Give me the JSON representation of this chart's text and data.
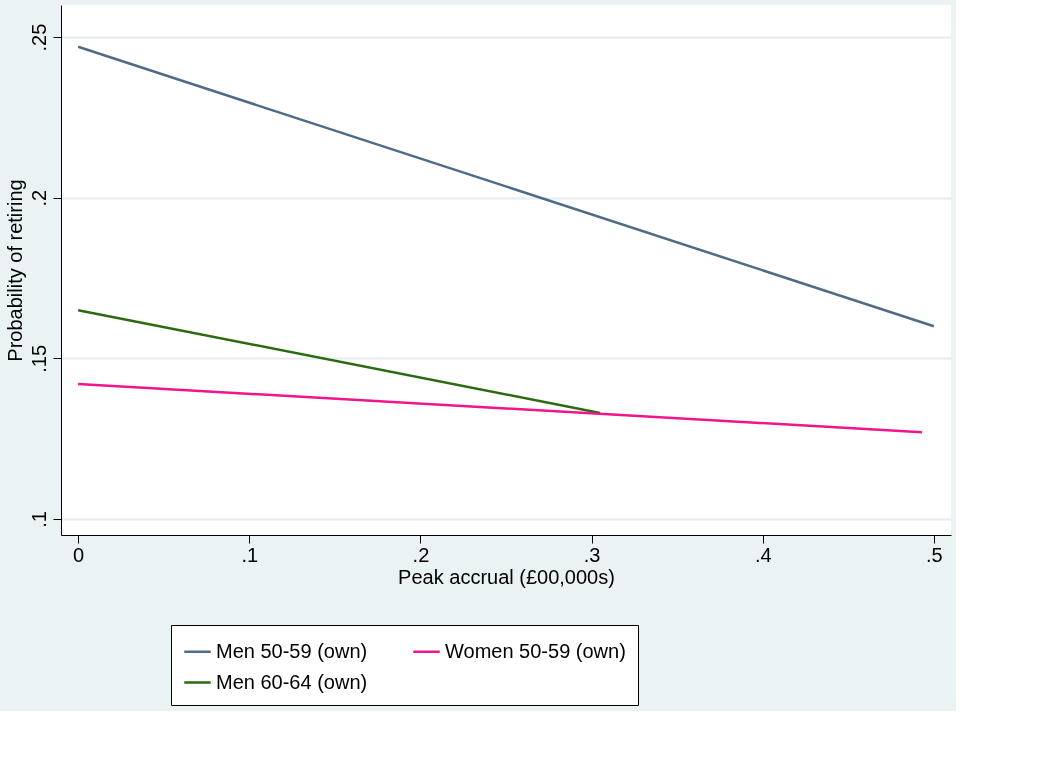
{
  "chart_data": {
    "type": "line",
    "xlabel": "Peak accrual (£00,000s)",
    "ylabel": "Probability of retiring",
    "xlim": [
      -0.01,
      0.51
    ],
    "ylim": [
      0.095,
      0.26
    ],
    "xticks": [
      {
        "value": 0,
        "label": "0"
      },
      {
        "value": 0.1,
        "label": ".1"
      },
      {
        "value": 0.2,
        "label": ".2"
      },
      {
        "value": 0.3,
        "label": ".3"
      },
      {
        "value": 0.4,
        "label": ".4"
      },
      {
        "value": 0.5,
        "label": ".5"
      }
    ],
    "yticks": [
      {
        "value": 0.1,
        "label": ".1"
      },
      {
        "value": 0.15,
        "label": ".15"
      },
      {
        "value": 0.2,
        "label": ".2"
      },
      {
        "value": 0.25,
        "label": ".25"
      }
    ],
    "grid": "y",
    "legend": "bottom",
    "marker": "none",
    "line_style": "solid",
    "series": [
      {
        "name": "Men 50-59 (own)",
        "color": "#4f6b86",
        "x": [
          0,
          0.5
        ],
        "values": [
          0.247,
          0.16
        ]
      },
      {
        "name": "Men 60-64 (own)",
        "color": "#2a6a10",
        "x": [
          0,
          0.305
        ],
        "values": [
          0.165,
          0.133
        ]
      },
      {
        "name": "Women 50-59 (own)",
        "color": "#f0158c",
        "x": [
          0,
          0.493
        ],
        "values": [
          0.142,
          0.127
        ]
      }
    ]
  }
}
